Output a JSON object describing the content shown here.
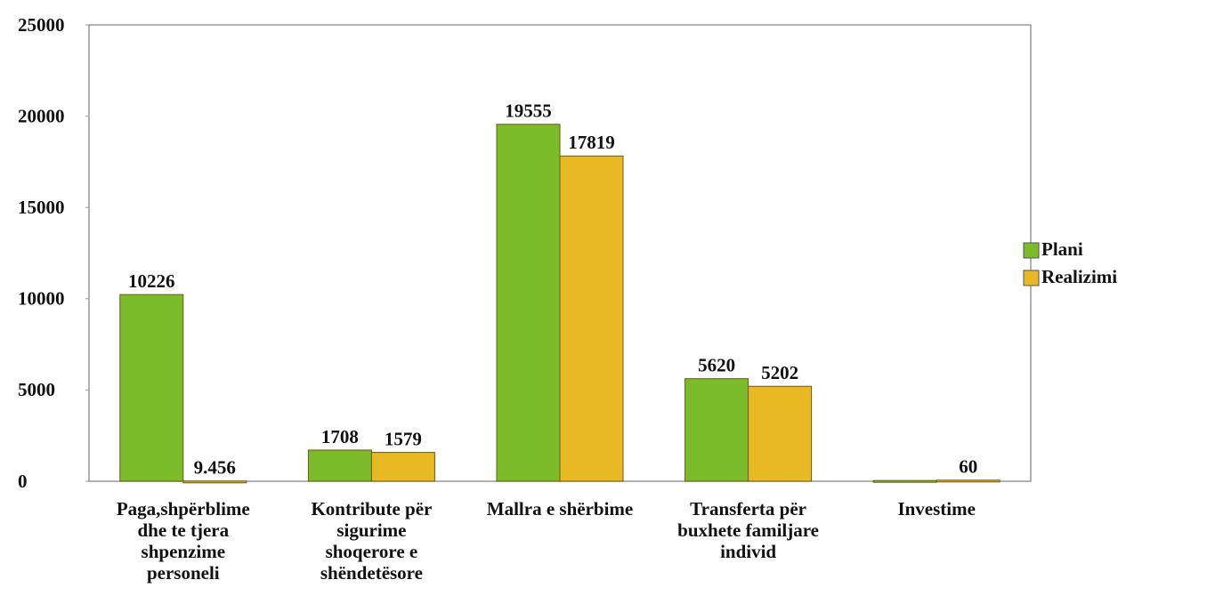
{
  "chart_data": {
    "type": "bar",
    "categories": [
      [
        "Paga,shpërblime",
        "dhe te tjera",
        "shpenzime",
        "personeli"
      ],
      [
        "Kontribute për",
        "sigurime",
        "shoqerore  e",
        "shëndetësore"
      ],
      [
        "Mallra e shërbime"
      ],
      [
        "Transferta për",
        "buxhete familjare",
        "individ"
      ],
      [
        "Investime"
      ]
    ],
    "series": [
      {
        "name": "Plani",
        "color": "#7cbb2a",
        "values": [
          10226,
          1708,
          19555,
          5620,
          40
        ],
        "value_labels": [
          "10226",
          "1708",
          "19555",
          "5620",
          null
        ]
      },
      {
        "name": "Realizimi",
        "color": "#e9b923",
        "values": [
          9.456,
          1579,
          17819,
          5202,
          60
        ]
      }
    ],
    "ylim": [
      0,
      25000
    ],
    "yticks": [
      0,
      5000,
      10000,
      15000,
      20000,
      25000
    ],
    "grid": false,
    "legend": "right"
  }
}
